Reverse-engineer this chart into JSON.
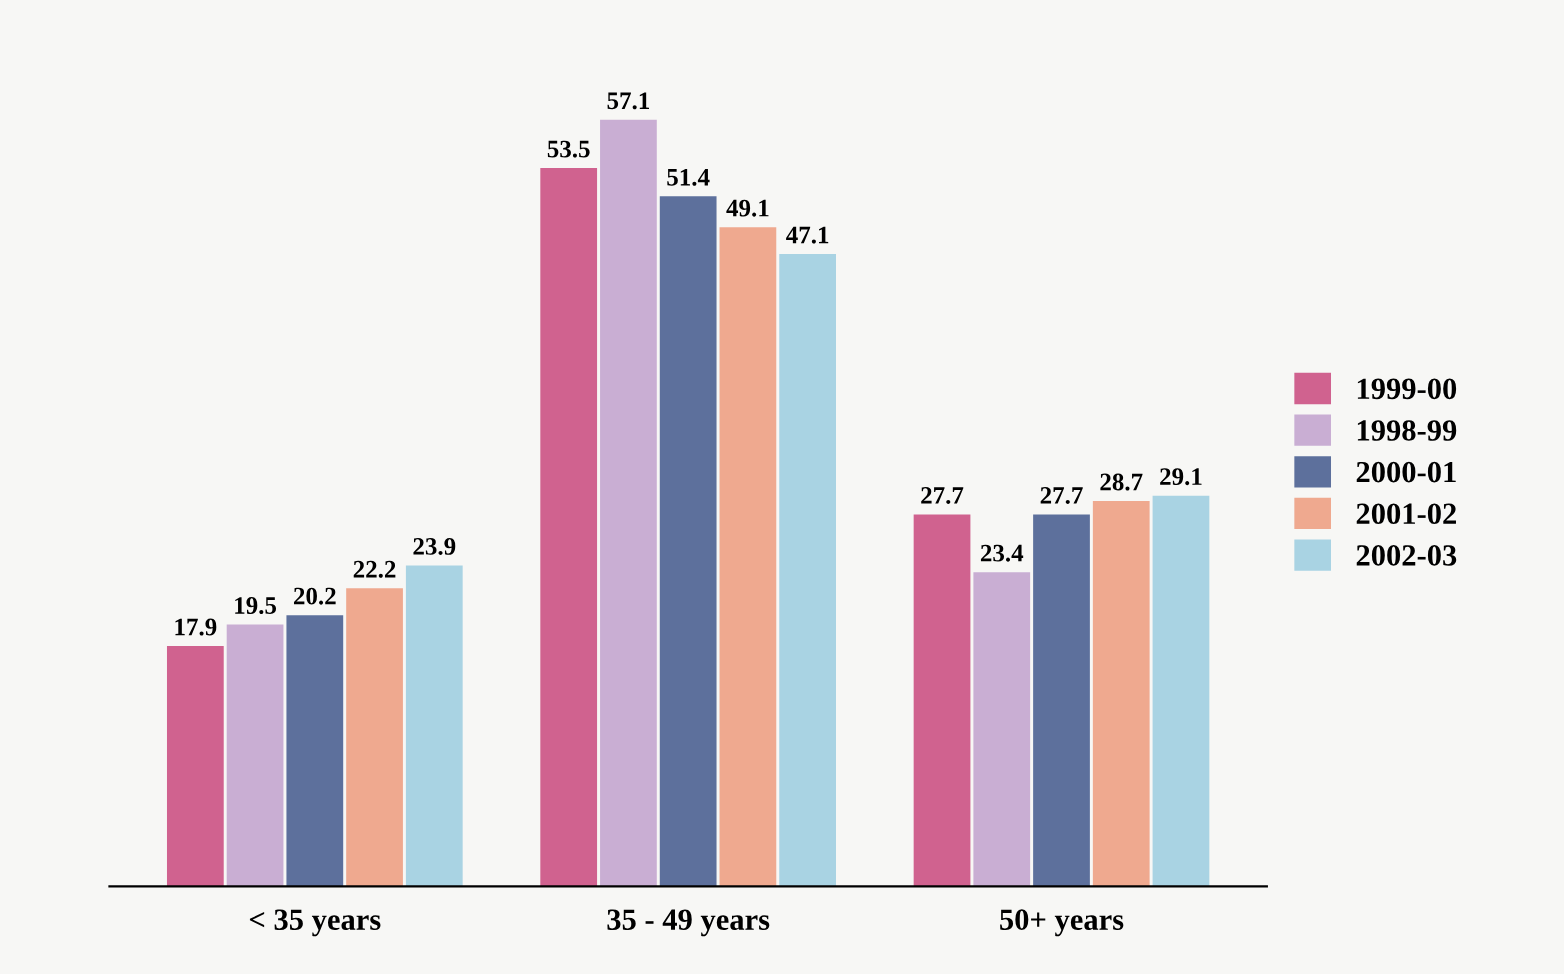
{
  "chart_data": {
    "type": "bar",
    "categories": [
      "< 35 years",
      "35 - 49 years",
      "50+ years"
    ],
    "series": [
      {
        "name": "1999-00",
        "color": "#d0628f",
        "values": [
          17.9,
          53.5,
          27.7
        ]
      },
      {
        "name": "1998-99",
        "color": "#c9aed3",
        "values": [
          19.5,
          57.1,
          23.4
        ]
      },
      {
        "name": "2000-01",
        "color": "#5d709c",
        "values": [
          20.2,
          51.4,
          27.7
        ]
      },
      {
        "name": "2001-02",
        "color": "#efa98f",
        "values": [
          22.2,
          49.1,
          28.7
        ]
      },
      {
        "name": "2002-03",
        "color": "#a9d3e3",
        "values": [
          23.9,
          47.1,
          29.1
        ]
      }
    ],
    "data_labels": true,
    "legend": "right",
    "grid": false
  }
}
